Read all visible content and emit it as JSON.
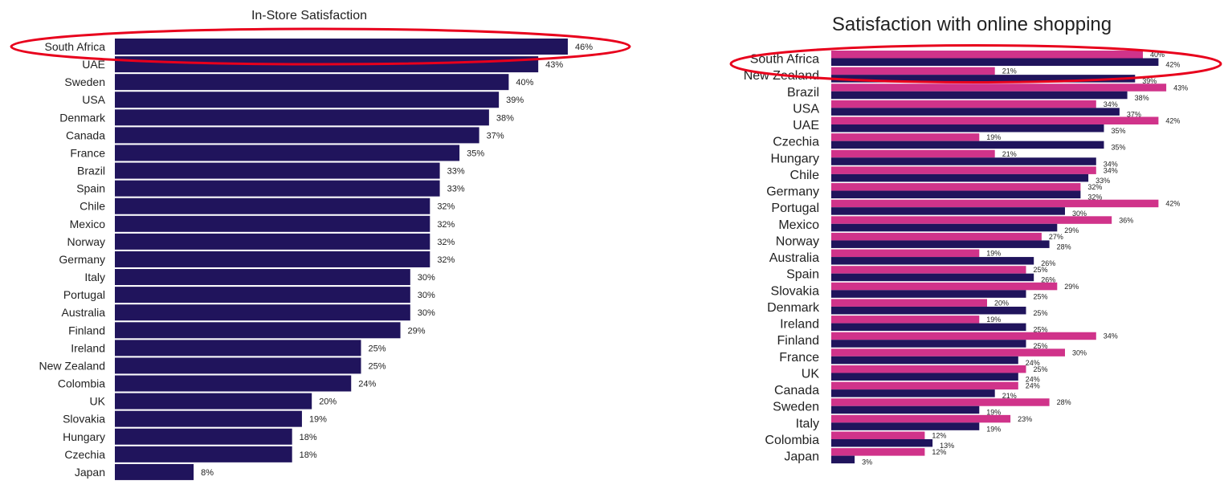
{
  "chart_data": [
    {
      "type": "bar",
      "orientation": "horizontal",
      "title": "In-Store Satisfaction",
      "categories": [
        "South Africa",
        "UAE",
        "Sweden",
        "USA",
        "Denmark",
        "Canada",
        "France",
        "Brazil",
        "Spain",
        "Chile",
        "Mexico",
        "Norway",
        "Germany",
        "Italy",
        "Portugal",
        "Australia",
        "Finland",
        "Ireland",
        "New Zealand",
        "Colombia",
        "UK",
        "Slovakia",
        "Hungary",
        "Czechia",
        "Japan"
      ],
      "values": [
        46,
        43,
        40,
        39,
        38,
        37,
        35,
        33,
        33,
        32,
        32,
        32,
        32,
        30,
        30,
        30,
        29,
        25,
        25,
        24,
        20,
        19,
        18,
        18,
        8
      ],
      "value_suffix": "%",
      "color": "#20145c",
      "highlight": "South Africa",
      "highlight_color": "#e8001c"
    },
    {
      "type": "bar",
      "orientation": "horizontal",
      "title": "Satisfaction with online shopping",
      "categories": [
        "South Africa",
        "New Zealand",
        "Brazil",
        "USA",
        "UAE",
        "Czechia",
        "Hungary",
        "Chile",
        "Germany",
        "Portugal",
        "Mexico",
        "Norway",
        "Australia",
        "Spain",
        "Slovakia",
        "Denmark",
        "Ireland",
        "Finland",
        "France",
        "UK",
        "Canada",
        "Sweden",
        "Italy",
        "Colombia",
        "Japan"
      ],
      "series": [
        {
          "name": "series-pink",
          "color": "#d0338a",
          "values": [
            40,
            21,
            43,
            34,
            42,
            19,
            21,
            34,
            32,
            42,
            36,
            27,
            19,
            25,
            29,
            20,
            19,
            34,
            30,
            25,
            24,
            28,
            23,
            12,
            12
          ]
        },
        {
          "name": "series-dark",
          "color": "#20145c",
          "values": [
            42,
            39,
            38,
            37,
            35,
            35,
            34,
            33,
            32,
            30,
            29,
            28,
            26,
            26,
            25,
            25,
            25,
            25,
            24,
            24,
            21,
            19,
            19,
            13,
            3
          ]
        }
      ],
      "value_suffix": "%",
      "highlight": "South Africa",
      "highlight_color": "#e8001c"
    }
  ]
}
